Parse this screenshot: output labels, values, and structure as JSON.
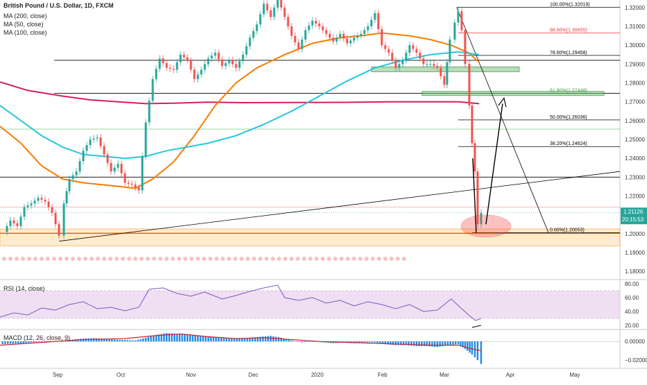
{
  "chart_data": {
    "type": "candlestick",
    "title": "British Pound / U.S. Dollar, 1D, FXCM",
    "ma_legend": [
      "MA (200, close)",
      "MA (50, close)",
      "MA (100, close)"
    ],
    "x_ticks": [
      "Sep",
      "Oct",
      "Nov",
      "Dec",
      "2020",
      "Feb",
      "Mar",
      "Apr",
      "May"
    ],
    "y_ticks": [
      "1.32000",
      "1.31000",
      "1.30000",
      "1.29000",
      "1.28000",
      "1.27000",
      "1.26000",
      "1.25000",
      "1.24000",
      "1.23000",
      "1.22000",
      "1.21000",
      "1.20000",
      "1.19000",
      "1.18000"
    ],
    "ylim": [
      1.176,
      1.324
    ],
    "current_price": "1.21126",
    "countdown": "20:15:53",
    "fib_levels": [
      {
        "label": "100.00%(1.32019)",
        "value": 1.32019,
        "color": "#000000"
      },
      {
        "label": "88.60%(1.30655)",
        "value": 1.30655,
        "color": "#e53935"
      },
      {
        "label": "78.60%(1.29458)",
        "value": 1.29458,
        "color": "#000000"
      },
      {
        "label": "61.80%(1.27448)",
        "value": 1.27448,
        "color": "#43a047"
      },
      {
        "label": "50.00%(1.26036)",
        "value": 1.26036,
        "color": "#000000"
      },
      {
        "label": "38.20%(1.24624)",
        "value": 1.24624,
        "color": "#000000"
      },
      {
        "label": "0.00%(1.20053)",
        "value": 1.20053,
        "color": "#000000"
      }
    ],
    "ma_series": [
      {
        "name": "MA (200, close)",
        "color": "#d81b60",
        "points": [
          [
            0,
            1.2805
          ],
          [
            40,
            1.276
          ],
          [
            90,
            1.273
          ],
          [
            130,
            1.271
          ],
          [
            170,
            1.27
          ],
          [
            210,
            1.269
          ],
          [
            250,
            1.2692
          ],
          [
            300,
            1.2698
          ],
          [
            350,
            1.2695
          ],
          [
            420,
            1.2696
          ],
          [
            500,
            1.2697
          ],
          [
            560,
            1.27
          ],
          [
            620,
            1.27
          ],
          [
            660,
            1.27
          ],
          [
            690,
            1.269
          ]
        ]
      },
      {
        "name": "MA (50, close)",
        "color": "#f57c00",
        "points": [
          [
            0,
            1.257
          ],
          [
            30,
            1.248
          ],
          [
            60,
            1.236
          ],
          [
            90,
            1.229
          ],
          [
            120,
            1.227
          ],
          [
            160,
            1.2255
          ],
          [
            195,
            1.224
          ],
          [
            220,
            1.229
          ],
          [
            250,
            1.238
          ],
          [
            280,
            1.252
          ],
          [
            310,
            1.268
          ],
          [
            340,
            1.28
          ],
          [
            370,
            1.288
          ],
          [
            410,
            1.295
          ],
          [
            450,
            1.301
          ],
          [
            490,
            1.304
          ],
          [
            520,
            1.305
          ],
          [
            550,
            1.3065
          ],
          [
            590,
            1.305
          ],
          [
            620,
            1.303
          ],
          [
            650,
            1.3
          ],
          [
            675,
            1.296
          ],
          [
            690,
            1.291
          ]
        ]
      },
      {
        "name": "MA (100, close)",
        "color": "#26c6da",
        "points": [
          [
            0,
            1.268
          ],
          [
            30,
            1.26
          ],
          [
            60,
            1.252
          ],
          [
            90,
            1.246
          ],
          [
            120,
            1.242
          ],
          [
            150,
            1.241
          ],
          [
            180,
            1.24
          ],
          [
            210,
            1.241
          ],
          [
            240,
            1.244
          ],
          [
            270,
            1.246
          ],
          [
            300,
            1.248
          ],
          [
            340,
            1.252
          ],
          [
            380,
            1.258
          ],
          [
            420,
            1.265
          ],
          [
            460,
            1.273
          ],
          [
            500,
            1.281
          ],
          [
            540,
            1.288
          ],
          [
            580,
            1.292
          ],
          [
            620,
            1.295
          ],
          [
            660,
            1.2965
          ],
          [
            690,
            1.295
          ]
        ]
      }
    ],
    "price_path": [
      [
        5,
        1.201
      ],
      [
        15,
        1.207
      ],
      [
        25,
        1.204
      ],
      [
        35,
        1.214
      ],
      [
        45,
        1.216
      ],
      [
        55,
        1.219
      ],
      [
        65,
        1.217
      ],
      [
        75,
        1.211
      ],
      [
        85,
        1.199
      ],
      [
        92,
        1.216
      ],
      [
        100,
        1.229
      ],
      [
        110,
        1.233
      ],
      [
        120,
        1.244
      ],
      [
        130,
        1.25
      ],
      [
        140,
        1.251
      ],
      [
        150,
        1.242
      ],
      [
        160,
        1.233
      ],
      [
        170,
        1.237
      ],
      [
        180,
        1.227
      ],
      [
        190,
        1.226
      ],
      [
        200,
        1.223
      ],
      [
        210,
        1.259
      ],
      [
        220,
        1.282
      ],
      [
        230,
        1.293
      ],
      [
        240,
        1.288
      ],
      [
        250,
        1.287
      ],
      [
        260,
        1.295
      ],
      [
        270,
        1.292
      ],
      [
        280,
        1.282
      ],
      [
        290,
        1.287
      ],
      [
        300,
        1.293
      ],
      [
        310,
        1.296
      ],
      [
        320,
        1.289
      ],
      [
        330,
        1.292
      ],
      [
        340,
        1.288
      ],
      [
        350,
        1.295
      ],
      [
        360,
        1.304
      ],
      [
        370,
        1.311
      ],
      [
        380,
        1.322
      ],
      [
        390,
        1.315
      ],
      [
        400,
        1.325
      ],
      [
        410,
        1.315
      ],
      [
        420,
        1.305
      ],
      [
        430,
        1.298
      ],
      [
        440,
        1.308
      ],
      [
        450,
        1.313
      ],
      [
        460,
        1.31
      ],
      [
        470,
        1.306
      ],
      [
        480,
        1.302
      ],
      [
        490,
        1.306
      ],
      [
        500,
        1.301
      ],
      [
        510,
        1.304
      ],
      [
        520,
        1.306
      ],
      [
        530,
        1.31
      ],
      [
        540,
        1.317
      ],
      [
        550,
        1.3
      ],
      [
        560,
        1.296
      ],
      [
        570,
        1.288
      ],
      [
        580,
        1.292
      ],
      [
        590,
        1.3
      ],
      [
        600,
        1.296
      ],
      [
        610,
        1.29
      ],
      [
        620,
        1.29
      ],
      [
        630,
        1.288
      ],
      [
        640,
        1.279
      ],
      [
        648,
        1.303
      ],
      [
        655,
        1.312
      ],
      [
        660,
        1.318
      ],
      [
        665,
        1.308
      ],
      [
        670,
        1.29
      ],
      [
        676,
        1.268
      ],
      [
        680,
        1.248
      ],
      [
        684,
        1.233
      ],
      [
        688,
        1.205
      ],
      [
        693,
        1.211
      ]
    ],
    "rsi": {
      "label": "RSI (14, close)",
      "ticks": [
        "80.00",
        "60.00",
        "40.00",
        "20.00"
      ],
      "ylim": [
        15,
        85
      ],
      "band": [
        30,
        70
      ],
      "points": [
        [
          0,
          32
        ],
        [
          20,
          38
        ],
        [
          40,
          35
        ],
        [
          60,
          45
        ],
        [
          80,
          42
        ],
        [
          100,
          50
        ],
        [
          120,
          54
        ],
        [
          140,
          44
        ],
        [
          160,
          46
        ],
        [
          180,
          41
        ],
        [
          200,
          46
        ],
        [
          215,
          72
        ],
        [
          235,
          74
        ],
        [
          255,
          66
        ],
        [
          275,
          62
        ],
        [
          295,
          68
        ],
        [
          320,
          58
        ],
        [
          340,
          63
        ],
        [
          360,
          69
        ],
        [
          380,
          74
        ],
        [
          400,
          78
        ],
        [
          410,
          60
        ],
        [
          430,
          56
        ],
        [
          450,
          60
        ],
        [
          470,
          52
        ],
        [
          490,
          56
        ],
        [
          510,
          48
        ],
        [
          530,
          54
        ],
        [
          550,
          50
        ],
        [
          570,
          44
        ],
        [
          590,
          50
        ],
        [
          610,
          40
        ],
        [
          630,
          42
        ],
        [
          650,
          58
        ],
        [
          665,
          44
        ],
        [
          675,
          35
        ],
        [
          685,
          27
        ],
        [
          693,
          30
        ]
      ]
    },
    "macd": {
      "label": "MACD (12, 26, close, 9)",
      "ticks": [
        "0.00000",
        "−0.02000"
      ],
      "ylim": [
        -0.028,
        0.012
      ],
      "hist": [
        [
          0,
          -0.003
        ],
        [
          15,
          -0.0025
        ],
        [
          30,
          -0.002
        ],
        [
          45,
          -0.001
        ],
        [
          60,
          -0.0005
        ],
        [
          75,
          0.0
        ],
        [
          90,
          0.001
        ],
        [
          105,
          0.002
        ],
        [
          120,
          0.003
        ],
        [
          135,
          0.0035
        ],
        [
          150,
          0.003
        ],
        [
          165,
          0.002
        ],
        [
          180,
          0.0015
        ],
        [
          195,
          0.001
        ],
        [
          210,
          0.004
        ],
        [
          225,
          0.007
        ],
        [
          240,
          0.009
        ],
        [
          255,
          0.008
        ],
        [
          270,
          0.007
        ],
        [
          285,
          0.006
        ],
        [
          300,
          0.005
        ],
        [
          315,
          0.004
        ],
        [
          330,
          0.003
        ],
        [
          345,
          0.003
        ],
        [
          360,
          0.004
        ],
        [
          375,
          0.005
        ],
        [
          390,
          0.006
        ],
        [
          405,
          0.004
        ],
        [
          420,
          0.001
        ],
        [
          435,
          -0.001
        ],
        [
          450,
          0.0
        ],
        [
          465,
          -0.001
        ],
        [
          480,
          -0.002
        ],
        [
          495,
          -0.001
        ],
        [
          510,
          -0.002
        ],
        [
          525,
          -0.001
        ],
        [
          540,
          -0.001
        ],
        [
          555,
          -0.003
        ],
        [
          570,
          -0.004
        ],
        [
          585,
          -0.004
        ],
        [
          600,
          -0.005
        ],
        [
          615,
          -0.005
        ],
        [
          630,
          -0.006
        ],
        [
          645,
          -0.004
        ],
        [
          660,
          -0.003
        ],
        [
          670,
          -0.008
        ],
        [
          680,
          -0.014
        ],
        [
          688,
          -0.02
        ],
        [
          693,
          -0.024
        ]
      ],
      "line": [
        [
          0,
          -0.004
        ],
        [
          60,
          -0.001
        ],
        [
          120,
          0.002
        ],
        [
          180,
          0.003
        ],
        [
          220,
          0.006
        ],
        [
          260,
          0.008
        ],
        [
          300,
          0.005
        ],
        [
          340,
          0.003
        ],
        [
          380,
          0.004
        ],
        [
          420,
          0.002
        ],
        [
          460,
          0.0
        ],
        [
          500,
          -0.001
        ],
        [
          540,
          -0.002
        ],
        [
          580,
          -0.003
        ],
        [
          620,
          -0.004
        ],
        [
          660,
          -0.004
        ],
        [
          680,
          -0.008
        ],
        [
          693,
          -0.01
        ]
      ]
    }
  }
}
